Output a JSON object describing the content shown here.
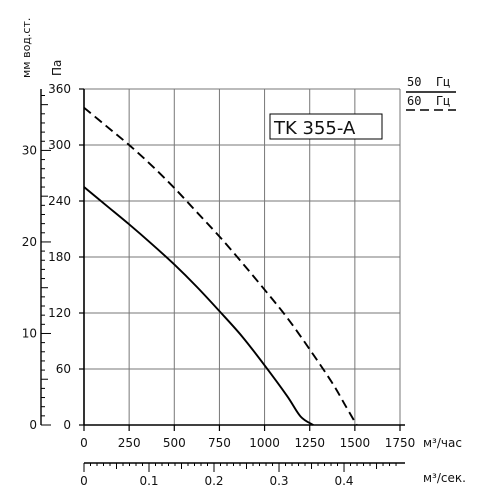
{
  "chart_data": {
    "type": "line",
    "title": "TK 355-A",
    "x_unit_primary": "м³/час",
    "x_ticks_primary": [
      "0",
      "250",
      "500",
      "750",
      "1000",
      "1250",
      "1500",
      "1750"
    ],
    "xlim_primary": [
      0,
      1750
    ],
    "x_unit_secondary": "м³/сек.",
    "x_ticks_secondary": [
      "0",
      "0.1",
      "0.2",
      "0.3",
      "0.4"
    ],
    "y_unit_primary": "Па",
    "y_ticks_primary": [
      "0",
      "60",
      "120",
      "180",
      "240",
      "300",
      "360"
    ],
    "ylim_primary": [
      0,
      360
    ],
    "y_unit_secondary": "мм вод.ст.",
    "y_ticks_secondary": [
      "0",
      "10",
      "20",
      "30"
    ],
    "grid": true,
    "legend": [
      {
        "label": "50  Гц",
        "style": "solid"
      },
      {
        "label": "60  Гц",
        "style": "dashed"
      }
    ],
    "series": [
      {
        "name": "50  Гц",
        "style": "solid",
        "points": [
          [
            0,
            255
          ],
          [
            125,
            235
          ],
          [
            250,
            215
          ],
          [
            375,
            194
          ],
          [
            500,
            172
          ],
          [
            625,
            148
          ],
          [
            750,
            122
          ],
          [
            875,
            95
          ],
          [
            1000,
            64
          ],
          [
            1125,
            31
          ],
          [
            1200,
            9
          ],
          [
            1270,
            0
          ]
        ]
      },
      {
        "name": "60  Гц",
        "style": "dashed",
        "points": [
          [
            0,
            340
          ],
          [
            125,
            320
          ],
          [
            250,
            300
          ],
          [
            375,
            278
          ],
          [
            500,
            254
          ],
          [
            625,
            228
          ],
          [
            750,
            202
          ],
          [
            875,
            174
          ],
          [
            1000,
            145
          ],
          [
            1125,
            115
          ],
          [
            1250,
            81
          ],
          [
            1375,
            45
          ],
          [
            1450,
            20
          ],
          [
            1510,
            0
          ]
        ]
      }
    ]
  }
}
